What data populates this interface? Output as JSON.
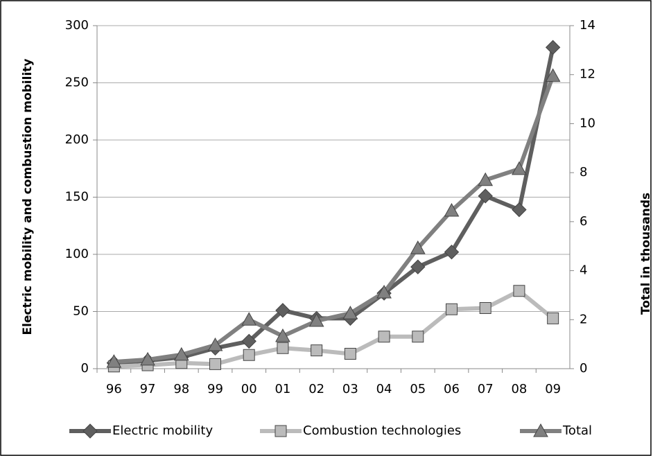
{
  "chart_data": {
    "type": "line",
    "categories": [
      "96",
      "97",
      "98",
      "99",
      "00",
      "01",
      "02",
      "03",
      "04",
      "05",
      "06",
      "07",
      "08",
      "09"
    ],
    "y_label": "Electric mobility and combustion mobility",
    "y2_label": "Total in thousands",
    "ylim": [
      0,
      300
    ],
    "yticks": [
      0,
      50,
      100,
      150,
      200,
      250,
      300
    ],
    "y2lim": [
      0,
      14
    ],
    "y2ticks": [
      0,
      2,
      4,
      6,
      8,
      10,
      12,
      14
    ],
    "grid": true,
    "legend": "bottom",
    "series": [
      {
        "name": "Electric mobility",
        "color": "#5f5f5f",
        "marker": "diamond",
        "values": [
          5,
          7,
          10,
          18,
          24,
          51,
          44,
          44,
          66,
          89,
          102,
          151,
          139,
          281
        ]
      },
      {
        "name": "Combustion technologies",
        "color": "#bbbbbb",
        "marker": "square",
        "values": [
          2,
          3,
          5,
          4,
          12,
          18,
          16,
          13,
          28,
          28,
          52,
          53,
          68,
          44
        ]
      },
      {
        "name": "Total",
        "color": "#808080",
        "marker": "triangle",
        "axis": "y2",
        "values": [
          0.28,
          0.37,
          0.57,
          0.96,
          2.0,
          1.33,
          1.95,
          2.26,
          3.11,
          4.92,
          6.45,
          7.7,
          8.15,
          11.95
        ]
      }
    ]
  }
}
